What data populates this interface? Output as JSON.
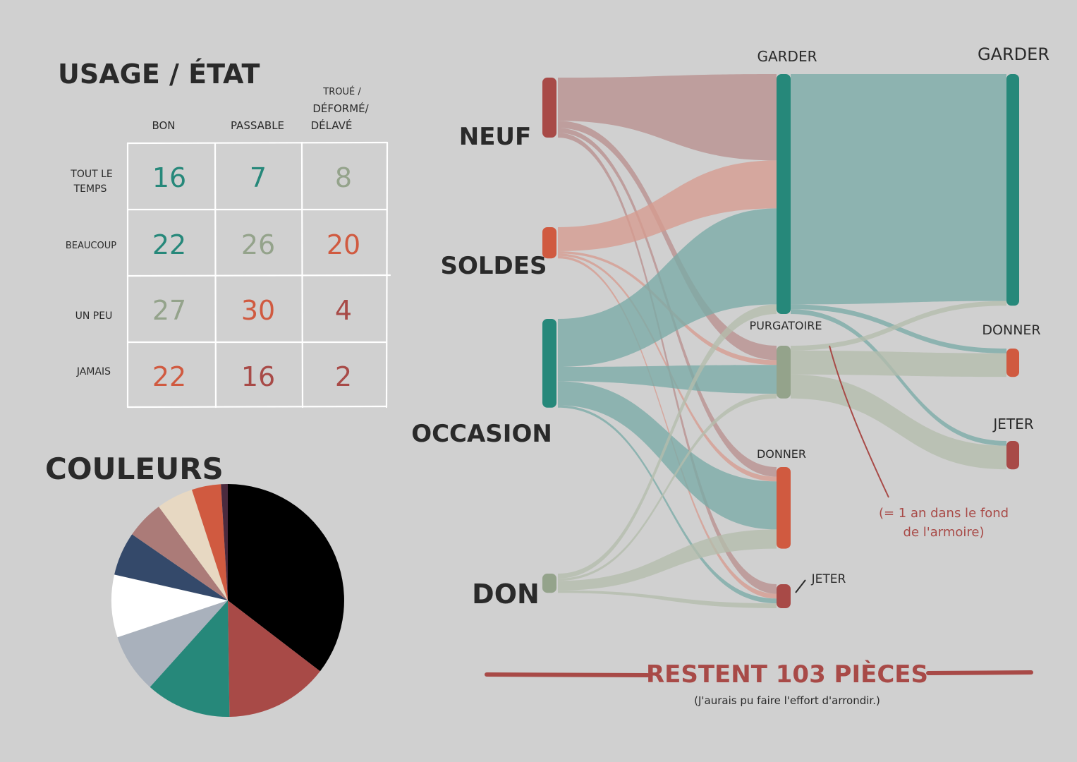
{
  "colors": {
    "background": "#d0d0d0",
    "teal": "#26887a",
    "teal_light": "#7aaba6",
    "red_dark": "#a84a47",
    "red_mid": "#b98f8e",
    "orange": "#d05a40",
    "salmon": "#d69b8f",
    "sage": "#94a38b",
    "sage_light": "#b3bcac",
    "ink": "#2a2a2a"
  },
  "chart_data": [
    {
      "type": "table",
      "title": "USAGE / ÉTAT",
      "columns": [
        "BON",
        "PASSABLE",
        "TROUÉ / DÉFORMÉ/ DÉLAVÉ"
      ],
      "column_lines": [
        [
          "BON"
        ],
        [
          "PASSABLE"
        ],
        [
          "TROUÉ /",
          "DÉFORMÉ/",
          "DÉLAVÉ"
        ]
      ],
      "rows": [
        {
          "label_lines": [
            "TOUT LE",
            "TEMPS"
          ],
          "values": [
            "16",
            "7",
            "8"
          ],
          "colors": [
            "#26887a",
            "#26887a",
            "#94a38b"
          ]
        },
        {
          "label_lines": [
            "BEAUCOUP"
          ],
          "values": [
            "22",
            "26",
            "20"
          ],
          "colors": [
            "#26887a",
            "#94a38b",
            "#d05a40"
          ]
        },
        {
          "label_lines": [
            "UN PEU"
          ],
          "values": [
            "27",
            "30",
            "4"
          ],
          "colors": [
            "#94a38b",
            "#d05a40",
            "#a84a47"
          ]
        },
        {
          "label_lines": [
            "JAMAIS"
          ],
          "values": [
            "22",
            "16",
            "2"
          ],
          "colors": [
            "#d05a40",
            "#a84a47",
            "#a84a47"
          ]
        }
      ]
    },
    {
      "type": "pie",
      "title": "COULEURS",
      "slices": [
        {
          "color": "#000000",
          "value": 37.5
        },
        {
          "color": "#a84a47",
          "value": 15.2
        },
        {
          "color": "#26887a",
          "value": 12.6
        },
        {
          "color": "#a9b1bc",
          "value": 8.7
        },
        {
          "color": "#ffffff",
          "value": 9.2
        },
        {
          "color": "#34496a",
          "value": 6.4
        },
        {
          "color": "#ab7b78",
          "value": 5.6
        },
        {
          "color": "#e7d8c2",
          "value": 5.4
        },
        {
          "color": "#d05a40",
          "value": 4.3
        },
        {
          "color": "#4a2a3e",
          "value": 1.0
        }
      ]
    },
    {
      "type": "sankey",
      "nodes": [
        {
          "id": "neuf",
          "label": "NEUF",
          "color": "#a84a47"
        },
        {
          "id": "soldes",
          "label": "SOLDES",
          "color": "#d05a40"
        },
        {
          "id": "occasion",
          "label": "OCCASION",
          "color": "#26887a"
        },
        {
          "id": "don",
          "label": "DON",
          "color": "#94a38b"
        },
        {
          "id": "garder1",
          "label": "GARDER",
          "color": "#26887a"
        },
        {
          "id": "purgatoire",
          "label": "PURGATOIRE",
          "color": "#94a38b"
        },
        {
          "id": "donner1",
          "label": "DONNER",
          "color": "#d05a40"
        },
        {
          "id": "jeter1",
          "label": "JETER",
          "color": "#a84a47"
        },
        {
          "id": "garder2",
          "label": "GARDER",
          "color": "#26887a"
        },
        {
          "id": "donner2",
          "label": "DONNER",
          "color": "#d05a40"
        },
        {
          "id": "jeter2",
          "label": "JETER",
          "color": "#a84a47"
        }
      ],
      "links": [
        {
          "source": "neuf",
          "target": "garder1",
          "value": 18,
          "color": "#b98f8e"
        },
        {
          "source": "neuf",
          "target": "purgatoire",
          "value": 3,
          "color": "#b98f8e"
        },
        {
          "source": "neuf",
          "target": "donner1",
          "value": 2,
          "color": "#b98f8e"
        },
        {
          "source": "neuf",
          "target": "jeter1",
          "value": 2,
          "color": "#b98f8e"
        },
        {
          "source": "soldes",
          "target": "garder1",
          "value": 10,
          "color": "#d69b8f"
        },
        {
          "source": "soldes",
          "target": "purgatoire",
          "value": 1,
          "color": "#d69b8f"
        },
        {
          "source": "soldes",
          "target": "donner1",
          "value": 1,
          "color": "#d69b8f"
        },
        {
          "source": "soldes",
          "target": "jeter1",
          "value": 1,
          "color": "#d69b8f"
        },
        {
          "source": "occasion",
          "target": "garder1",
          "value": 20,
          "color": "#7aaba6"
        },
        {
          "source": "occasion",
          "target": "purgatoire",
          "value": 6,
          "color": "#7aaba6"
        },
        {
          "source": "occasion",
          "target": "donner1",
          "value": 10,
          "color": "#7aaba6"
        },
        {
          "source": "occasion",
          "target": "jeter1",
          "value": 1,
          "color": "#7aaba6"
        },
        {
          "source": "don",
          "target": "garder1",
          "value": 2,
          "color": "#b3bcac"
        },
        {
          "source": "don",
          "target": "purgatoire",
          "value": 1,
          "color": "#b3bcac"
        },
        {
          "source": "don",
          "target": "donner1",
          "value": 4,
          "color": "#b3bcac"
        },
        {
          "source": "don",
          "target": "jeter1",
          "value": 1,
          "color": "#b3bcac"
        },
        {
          "source": "garder1",
          "target": "garder2",
          "value": 48,
          "color": "#7aaba6"
        },
        {
          "source": "garder1",
          "target": "donner2",
          "value": 1,
          "color": "#7aaba6"
        },
        {
          "source": "garder1",
          "target": "jeter2",
          "value": 1,
          "color": "#7aaba6"
        },
        {
          "source": "purgatoire",
          "target": "garder2",
          "value": 1,
          "color": "#b3bcac"
        },
        {
          "source": "purgatoire",
          "target": "donner2",
          "value": 5,
          "color": "#b3bcac"
        },
        {
          "source": "purgatoire",
          "target": "jeter2",
          "value": 5,
          "color": "#b3bcac"
        }
      ],
      "annotation_lines": [
        "(= 1 an dans le fond",
        "de l'armoire)"
      ]
    }
  ],
  "footer": {
    "title": "RESTENT 103 PIÈCES",
    "subtitle": "(J'aurais pu faire l'effort d'arrondir.)"
  }
}
